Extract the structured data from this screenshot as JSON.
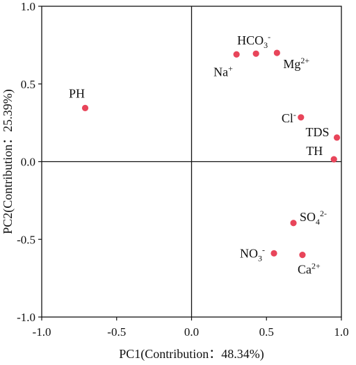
{
  "chart_data": {
    "type": "scatter",
    "xlabel": "PC1(Contribution：48.34%)",
    "ylabel": "PC2(Contribution：25.39%)",
    "xlim": [
      -1.0,
      1.0
    ],
    "ylim": [
      -1.0,
      1.0
    ],
    "xticks": [
      "-1.0",
      "-0.5",
      "0.0",
      "0.5",
      "1.0"
    ],
    "yticks": [
      "-1.0",
      "-0.5",
      "0.0",
      "0.5",
      "1.0"
    ],
    "grid": false,
    "reference_lines": [
      "x=0",
      "y=0"
    ],
    "marker_color": "#e8455a",
    "points": [
      {
        "label": "PH",
        "x": -0.71,
        "y": 0.345
      },
      {
        "label": "Na+",
        "x": 0.3,
        "y": 0.69
      },
      {
        "label": "HCO3-",
        "x": 0.43,
        "y": 0.695
      },
      {
        "label": "Mg2+",
        "x": 0.57,
        "y": 0.7
      },
      {
        "label": "Cl-",
        "x": 0.73,
        "y": 0.285
      },
      {
        "label": "TDS",
        "x": 0.97,
        "y": 0.155
      },
      {
        "label": "TH",
        "x": 0.95,
        "y": 0.015
      },
      {
        "label": "SO42-",
        "x": 0.68,
        "y": -0.395
      },
      {
        "label": "NO3-",
        "x": 0.55,
        "y": -0.59
      },
      {
        "label": "Ca2+",
        "x": 0.74,
        "y": -0.6
      }
    ]
  }
}
